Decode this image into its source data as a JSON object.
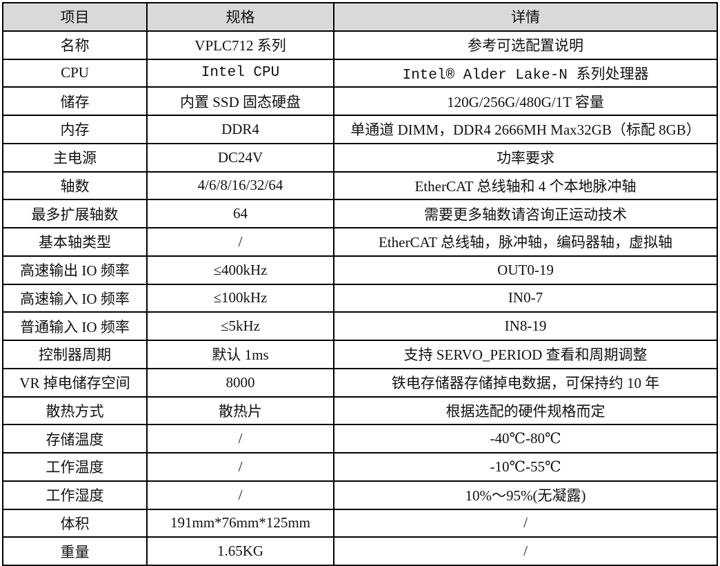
{
  "header": [
    "项目",
    "规格",
    "详情"
  ],
  "rows": [
    [
      "名称",
      "VPLC712 系列",
      "参考可选配置说明"
    ],
    [
      "CPU",
      "Intel CPU",
      "Intel® Alder Lake-N 系列处理器"
    ],
    [
      "储存",
      "内置 SSD 固态硬盘",
      "120G/256G/480G/1T 容量"
    ],
    [
      "内存",
      "DDR4",
      "单通道 DIMM，DDR4 2666MH Max32GB（标配 8GB）"
    ],
    [
      "主电源",
      "DC24V",
      "功率要求"
    ],
    [
      "轴数",
      "4/6/8/16/32/64",
      "EtherCAT 总线轴和 4 个本地脉冲轴"
    ],
    [
      "最多扩展轴数",
      "64",
      "需要更多轴数请咨询正运动技术"
    ],
    [
      "基本轴类型",
      "/",
      "EtherCAT 总线轴，脉冲轴，编码器轴，虚拟轴"
    ],
    [
      "高速输出 IO 频率",
      "≤400kHz",
      "OUT0-19"
    ],
    [
      "高速输入 IO 频率",
      "≤100kHz",
      "IN0-7"
    ],
    [
      "普通输入 IO 频率",
      "≤5kHz",
      "IN8-19"
    ],
    [
      "控制器周期",
      "默认 1ms",
      "支持 SERVO_PERIOD 查看和周期调整"
    ],
    [
      "VR 掉电储存空间",
      "8000",
      "铁电存储器存储掉电数据，可保持约 10 年"
    ],
    [
      "散热方式",
      "散热片",
      "根据选配的硬件规格而定"
    ],
    [
      "存储温度",
      "/",
      "-40℃-80℃"
    ],
    [
      "工作温度",
      "/",
      "-10℃-55℃"
    ],
    [
      "工作湿度",
      "/",
      "10%～95%(无凝露)"
    ],
    [
      "体积",
      "191mm*76mm*125mm",
      "/"
    ],
    [
      "重量",
      "1.65KG",
      "/"
    ]
  ],
  "colors": {
    "header_bg": "#d9d9d9",
    "border": "#000000"
  }
}
